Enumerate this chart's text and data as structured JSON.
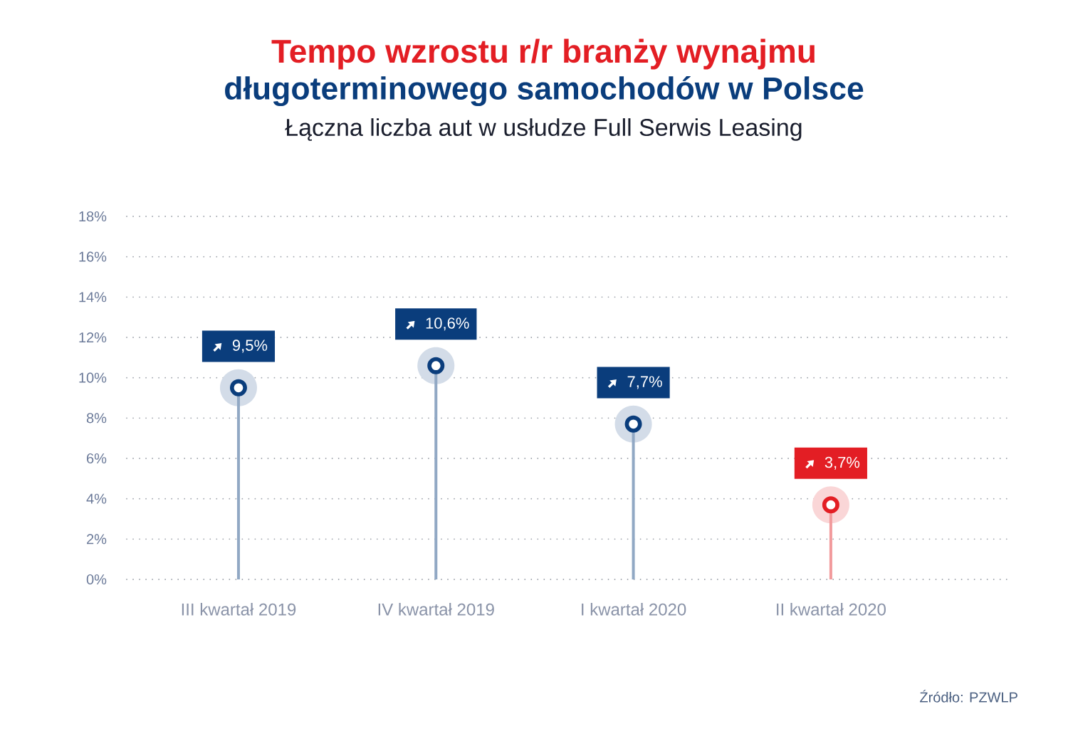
{
  "chart_data": {
    "type": "lollipop",
    "title": "Tempo wzrostu r/r branży wynajmu",
    "subtitle": "długoterminowego samochodów w Polsce",
    "annotations": [
      "Łączna liczba aut w usłudze Full Serwis Leasing",
      "Źródło: PZWLP"
    ],
    "categories": [
      "III kwartał 2019",
      "IV kwartał 2019",
      "I kwartał 2020",
      "II kwartał 2020"
    ],
    "values": [
      9.5,
      10.6,
      7.7,
      3.7
    ],
    "value_labels": [
      "9,5%",
      "10,6%",
      "7,7%",
      "3,7%"
    ],
    "colors": [
      "#0a3d7c",
      "#0a3d7c",
      "#0a3d7c",
      "#e31e24"
    ],
    "ylim": [
      0,
      18
    ],
    "yticks": [
      {
        "value": 0,
        "label": "0%"
      },
      {
        "value": 2,
        "label": "2%"
      },
      {
        "value": 4,
        "label": "4%"
      },
      {
        "value": 6,
        "label": "6%"
      },
      {
        "value": 8,
        "label": "8%"
      },
      {
        "value": 10,
        "label": "10%"
      },
      {
        "value": 12,
        "label": "12%"
      },
      {
        "value": 14,
        "label": "14%"
      },
      {
        "value": 16,
        "label": "16%"
      },
      {
        "value": 18,
        "label": "18%"
      }
    ],
    "grid": "y",
    "marker": "circle"
  }
}
